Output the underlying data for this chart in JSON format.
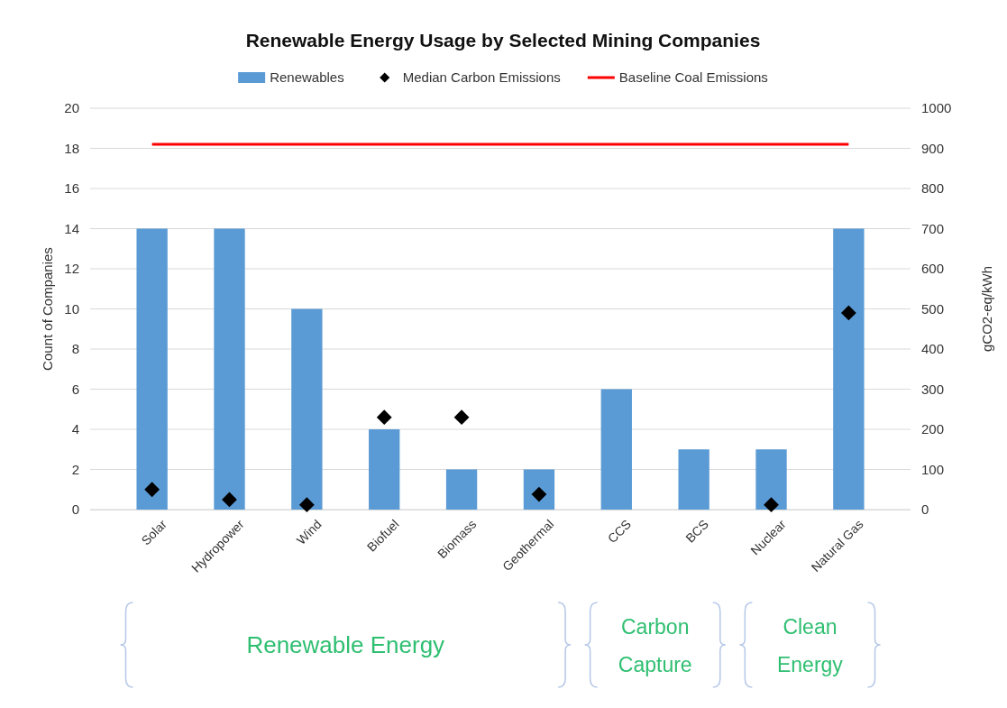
{
  "chart_data": {
    "type": "bar",
    "title": "Renewable Energy Usage by Selected Mining Companies",
    "ylabel": "Count of Companies",
    "y2label": "gCO2-eq/kWh",
    "categories": [
      "Solar",
      "Hydropower",
      "Wind",
      "Biofuel",
      "Biomass",
      "Geothermal",
      "CCS",
      "BCS",
      "Nuclear",
      "Natural Gas"
    ],
    "series": [
      {
        "name": "Renewables",
        "color": "#5b9bd5",
        "values": [
          14,
          14,
          10,
          4,
          2,
          2,
          6,
          3,
          3,
          14
        ]
      },
      {
        "name": "Median Carbon Emissions",
        "type": "scatter",
        "axis": "y2",
        "marker": "diamond",
        "color": "#000000",
        "values": [
          50,
          25,
          12,
          230,
          230,
          38,
          null,
          null,
          12,
          490
        ]
      },
      {
        "name": "Baseline Coal Emissions",
        "type": "line",
        "axis": "y2",
        "marker": "none",
        "line_style": "solid",
        "color": "#ff0000",
        "values": [
          910,
          910,
          910,
          910,
          910,
          910,
          910,
          910,
          910,
          910
        ]
      }
    ],
    "ylim": [
      0,
      20
    ],
    "yticks": [
      0,
      2,
      4,
      6,
      8,
      10,
      12,
      14,
      16,
      18,
      20
    ],
    "y2lim": [
      0,
      1000
    ],
    "y2ticks": [
      0,
      100,
      200,
      300,
      400,
      500,
      600,
      700,
      800,
      900,
      1000
    ],
    "grid": "y",
    "legend": "top",
    "annotations": [
      "Renewable Energy",
      "Carbon Capture",
      "Clean Energy"
    ]
  }
}
